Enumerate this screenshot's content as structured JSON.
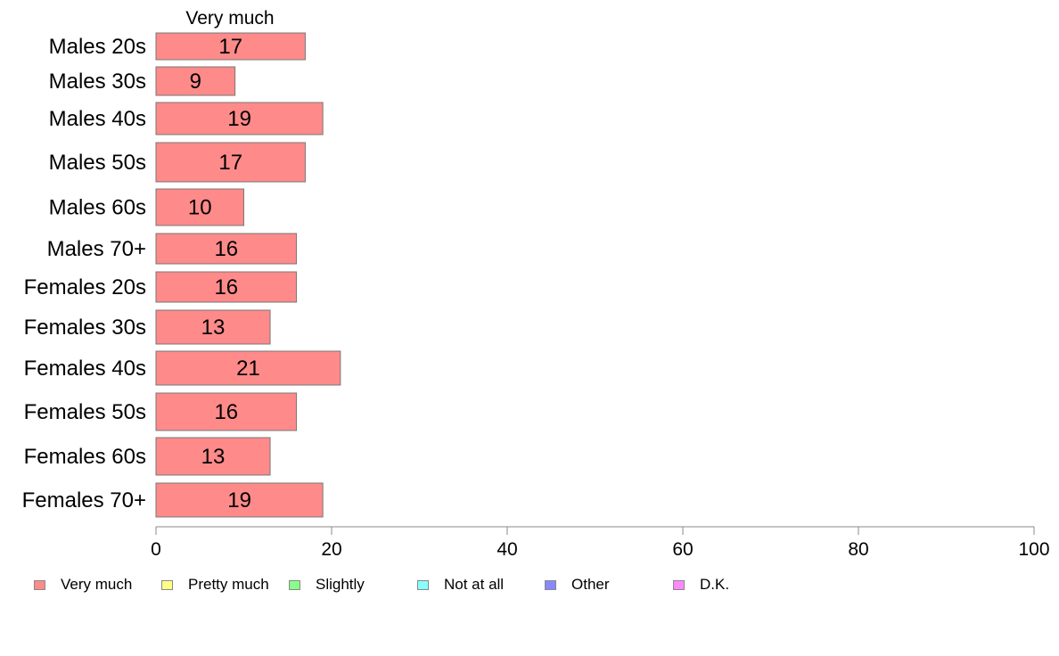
{
  "chart_data": {
    "type": "bar",
    "orientation": "horizontal",
    "series_title": "Very much",
    "categories": [
      "Males 20s",
      "Males 30s",
      "Males 40s",
      "Males 50s",
      "Males 60s",
      "Males 70+",
      "Females 20s",
      "Females 30s",
      "Females 40s",
      "Females 50s",
      "Females 60s",
      "Females 70+"
    ],
    "series": [
      {
        "name": "Very much",
        "color": "#ff8a8a",
        "values": [
          17,
          9,
          19,
          17,
          10,
          16,
          16,
          13,
          21,
          16,
          13,
          19
        ],
        "labels": [
          "17",
          "9",
          "19",
          "17",
          "10",
          "16",
          "16",
          "13",
          "21",
          "16",
          "13",
          "19"
        ]
      }
    ],
    "xlim": [
      0,
      100
    ],
    "xticks": [
      "0",
      "20",
      "40",
      "60",
      "80",
      "100"
    ],
    "grid": false,
    "legend_position": "bottom",
    "legend": [
      {
        "label": "Very much",
        "color": "#ff8a8a"
      },
      {
        "label": "Pretty much",
        "color": "#ffff88"
      },
      {
        "label": "Slightly",
        "color": "#88ff88"
      },
      {
        "label": "Not at all",
        "color": "#88ffff"
      },
      {
        "label": "Other",
        "color": "#8888ff"
      },
      {
        "label": "D.K.",
        "color": "#ff88ff"
      }
    ]
  }
}
